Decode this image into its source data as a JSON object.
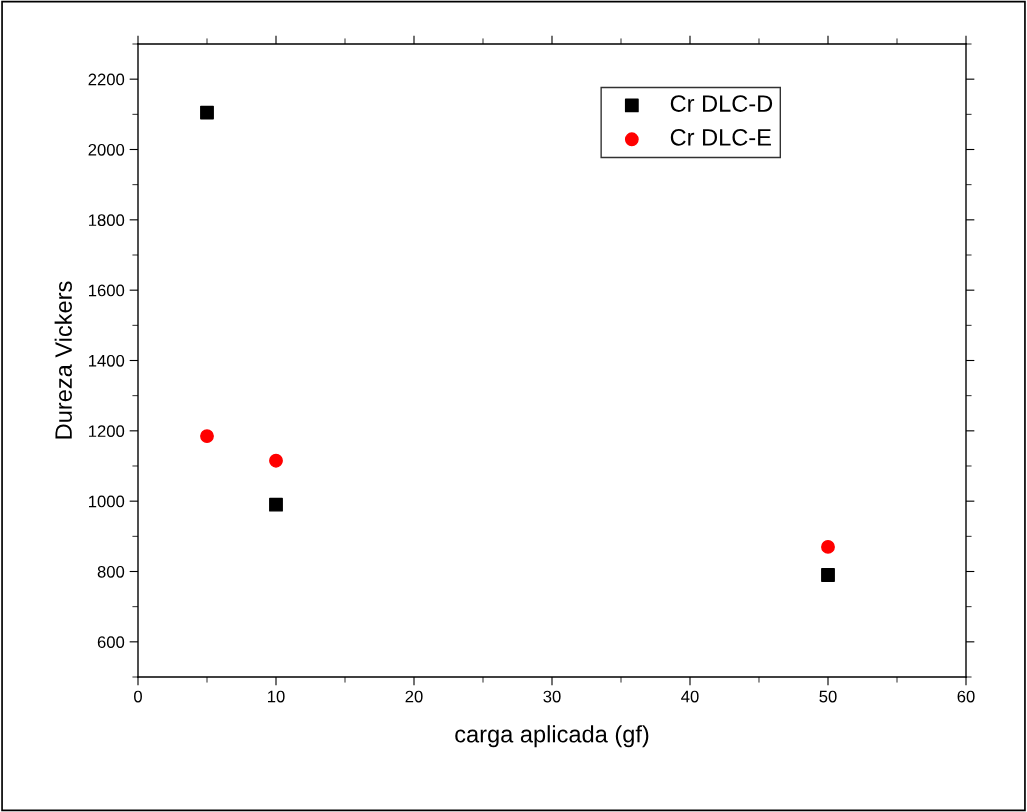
{
  "chart_data": {
    "type": "scatter",
    "xlabel": "carga aplicada (gf)",
    "ylabel": "Dureza Vickers",
    "xlim": [
      0,
      60
    ],
    "xticks": [
      0,
      10,
      20,
      30,
      40,
      50,
      60
    ],
    "ylim": [
      500,
      2300
    ],
    "yticks": [
      600,
      800,
      1000,
      1200,
      1400,
      1600,
      1800,
      2000,
      2200
    ],
    "grid": false,
    "legend": "top right",
    "series": [
      {
        "name": "Cr DLC-D",
        "color": "#000000",
        "marker": "square",
        "x": [
          5,
          10,
          50
        ],
        "values": [
          2105,
          990,
          790
        ]
      },
      {
        "name": "Cr DLC-E",
        "color": "#ff0000",
        "marker": "circle",
        "x": [
          5,
          10,
          50
        ],
        "values": [
          1185,
          1115,
          870
        ]
      }
    ]
  }
}
